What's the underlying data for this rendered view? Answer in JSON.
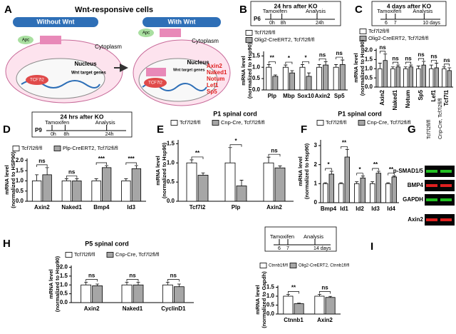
{
  "diagram": {
    "panel": "A",
    "title": "Wnt-responsive cells",
    "left_title": "Without Wnt",
    "right_title": "With Wnt",
    "left": {
      "apc": "Apc",
      "cytoplasm": "Cytoplasm",
      "nucleus": "Nucleus",
      "tf": "TCF7l2",
      "genes": "Wnt target genes"
    },
    "right": {
      "apc": "Apc",
      "cytoplasm": "Cytoplasm",
      "nucleus": "Nucleus",
      "tf": "TCF7l2",
      "genes": "Wnt target genes",
      "target_list": [
        "Axin2",
        "Naked1",
        "Notum",
        "Lef1",
        "Sp5"
      ]
    }
  },
  "blot": {
    "panel": "G",
    "columns": [
      "Tcf7l2fl/fl",
      "Cnp-Cre, Tcf7l2fl/fl"
    ],
    "rows": [
      "p-SMAD1/5",
      "BMP4",
      "GAPDH",
      "Axin2"
    ]
  },
  "chart_data": [
    {
      "type": "bar",
      "panel": "B",
      "timeline": {
        "title": "24 hrs after KO",
        "start": "P6",
        "ticks": [
          "0h",
          "8h",
          "24h"
        ],
        "events": [
          "Tamoxifen",
          "Analysis"
        ]
      },
      "ylabel": [
        "mRNA level",
        "(normalized to Hsp90)"
      ],
      "categories": [
        "Plp",
        "Mbp",
        "Sox10",
        "Axin2",
        "Sp5"
      ],
      "series": [
        {
          "name": "Tcf7l2fl/fl",
          "color": "#ffffff",
          "values": [
            1.0,
            1.0,
            1.0,
            1.0,
            1.0
          ],
          "errors": [
            0.12,
            0.1,
            0.12,
            0.12,
            0.12
          ]
        },
        {
          "name": "Olig2-CreERT2, Tcf7l2fl/fl",
          "color": "#a6a6a6",
          "values": [
            0.6,
            0.75,
            0.6,
            1.1,
            1.12
          ],
          "errors": [
            0.06,
            0.1,
            0.15,
            0.15,
            0.2
          ]
        }
      ],
      "annotations": [
        "**",
        "*",
        "*",
        "ns",
        "ns"
      ],
      "ylim": [
        0,
        1.7
      ],
      "yticks": [
        {
          "value": 0,
          "label": "0.0"
        },
        {
          "value": 0.5,
          "label": "0.5"
        },
        {
          "value": 1,
          "label": "1.0"
        },
        {
          "value": 1.5,
          "label": "1.5"
        }
      ]
    },
    {
      "type": "bar",
      "panel": "C",
      "timeline": {
        "title": "4 days after KO",
        "ticks": [
          "6",
          "7",
          "10 days"
        ],
        "events": [
          "Tamoxifen",
          "Analysis"
        ]
      },
      "ylabel": [
        "mRNA level",
        "(normalized to Hsp90)"
      ],
      "categories": [
        "Axin2",
        "Naked1",
        "Notum",
        "Sp5",
        "Lef1",
        "Tcf7l1"
      ],
      "series": [
        {
          "name": "Tcf7l2fl/fl",
          "color": "#ffffff",
          "values": [
            1.0,
            1.0,
            1.0,
            1.0,
            1.0,
            1.0
          ],
          "errors": [
            0.3,
            0.1,
            0.1,
            0.15,
            0.2,
            0.1
          ]
        },
        {
          "name": "Olig2-CreERT2, Tcf7l2fl/fl",
          "color": "#a6a6a6",
          "values": [
            1.45,
            1.1,
            1.1,
            1.2,
            1.05,
            0.9
          ],
          "errors": [
            0.35,
            0.1,
            0.1,
            0.2,
            0.25,
            0.15
          ]
        }
      ],
      "annotations": [
        "ns",
        "ns",
        "ns",
        "ns",
        "ns",
        "ns"
      ],
      "ylim": [
        0,
        2.1
      ],
      "rotate_labels": true,
      "yticks": [
        {
          "value": 0,
          "label": "0.0"
        },
        {
          "value": 0.5,
          "label": "0.5"
        },
        {
          "value": 1,
          "label": "1.0"
        },
        {
          "value": 1.5,
          "label": "1.5"
        },
        {
          "value": 2,
          "label": "2.0"
        }
      ]
    },
    {
      "type": "bar",
      "panel": "D",
      "timeline": {
        "title": "24 hrs after KO",
        "start": "P9",
        "ticks": [
          "0h",
          "8h",
          "24h"
        ],
        "events": [
          "Tamoxifen",
          "Analysis"
        ]
      },
      "ylabel": [
        "mRNA level",
        "(normalized to HSP90)"
      ],
      "categories": [
        "Axin2",
        "Naked1",
        "Bmp4",
        "Id3"
      ],
      "series": [
        {
          "name": "Tcf7l2fl/fl",
          "color": "#ffffff",
          "values": [
            1.0,
            1.0,
            1.0,
            1.0
          ],
          "errors": [
            0.3,
            0.1,
            0.1,
            0.1
          ]
        },
        {
          "name": "Plp-CreERT2, Tcf7l2fl/fl",
          "color": "#a6a6a6",
          "values": [
            1.3,
            1.0,
            1.65,
            1.6
          ],
          "errors": [
            0.35,
            0.1,
            0.1,
            0.15
          ]
        }
      ],
      "annotations": [
        "ns",
        "ns",
        "***",
        "***"
      ],
      "ylim": [
        0,
        2.1
      ],
      "yticks": [
        {
          "value": 0,
          "label": "0.0"
        },
        {
          "value": 0.5,
          "label": "0.5"
        },
        {
          "value": 1,
          "label": "1.0"
        },
        {
          "value": 1.5,
          "label": "1.5"
        },
        {
          "value": 2,
          "label": "2.0"
        }
      ]
    },
    {
      "type": "bar",
      "panel": "E",
      "title": "P1 spinal cord",
      "ylabel": [
        "mRNA level",
        "(normalized to Hsp90)"
      ],
      "categories": [
        "Tcf7l2",
        "Plp",
        "Axin2"
      ],
      "series": [
        {
          "name": "Tcf7l2fl/fl",
          "color": "#ffffff",
          "values": [
            1.0,
            1.0,
            1.0
          ],
          "errors": [
            0.08,
            0.4,
            0.15
          ]
        },
        {
          "name": "Cnp-Cre, Tcf7l2fl/fl",
          "color": "#a6a6a6",
          "values": [
            0.68,
            0.4,
            0.87
          ],
          "errors": [
            0.06,
            0.15,
            0.05
          ]
        }
      ],
      "annotations": [
        "**",
        "*",
        "ns"
      ],
      "ylim": [
        0,
        1.6
      ],
      "yticks": [
        {
          "value": 0,
          "label": "0.0"
        },
        {
          "value": 0.5,
          "label": "0.5"
        },
        {
          "value": 1,
          "label": "1.0"
        },
        {
          "value": 1.5,
          "label": "1.5"
        }
      ]
    },
    {
      "type": "bar",
      "panel": "F",
      "title": "P1 spinal cord",
      "ylabel": [
        "mRNA level",
        "(normalized to Hsp90)"
      ],
      "categories": [
        "Bmp4",
        "Id1",
        "Id2",
        "Id3",
        "Id4"
      ],
      "series": [
        {
          "name": "Tcf7l2fl/fl",
          "color": "#ffffff",
          "values": [
            1.0,
            1.0,
            1.0,
            1.0,
            1.0
          ],
          "errors": [
            0.05,
            0.05,
            0.1,
            0.1,
            0.05
          ]
        },
        {
          "name": "Cnp-Cre, Tcf7l2fl/fl",
          "color": "#a6a6a6",
          "values": [
            1.5,
            2.4,
            1.3,
            1.55,
            1.35
          ],
          "errors": [
            0.15,
            0.4,
            0.1,
            0.1,
            0.05
          ]
        }
      ],
      "annotations": [
        "*",
        "**",
        "*",
        "**",
        "**"
      ],
      "ylim": [
        0,
        3.3
      ],
      "yticks": [
        0,
        1,
        2,
        3
      ]
    },
    {
      "type": "bar",
      "panel": "H",
      "title": "P5 spinal cord",
      "ylabel": [
        "mRNA level",
        "(normalized to Hsp90)"
      ],
      "categories": [
        "Axin2",
        "Naked1",
        "CyclinD1"
      ],
      "series": [
        {
          "name": "Tcf7l2fl/fl",
          "color": "#ffffff",
          "values": [
            1.0,
            1.0,
            1.0
          ],
          "errors": [
            0.15,
            0.15,
            0.15
          ]
        },
        {
          "name": "Cnp-Cre, Tcf7l2fl/fl",
          "color": "#a6a6a6",
          "values": [
            0.95,
            1.0,
            0.9
          ],
          "errors": [
            0.1,
            0.15,
            0.15
          ]
        }
      ],
      "annotations": [
        "ns",
        "ns",
        "ns"
      ],
      "ylim": [
        0,
        2.1
      ],
      "yticks": [
        {
          "value": 0,
          "label": "0.0"
        },
        {
          "value": 0.5,
          "label": "0.5"
        },
        {
          "value": 1,
          "label": "1.0"
        },
        {
          "value": 1.5,
          "label": "1.5"
        },
        {
          "value": 2,
          "label": "2.0"
        }
      ]
    },
    {
      "type": "bar",
      "panel": "I",
      "timeline": {
        "ticks": [
          "6",
          "7",
          "14 days"
        ],
        "events": [
          "Tamoxifen",
          "Analysis"
        ]
      },
      "ylabel": [
        "mRNA level",
        "(normalized to Gapdh)"
      ],
      "categories": [
        "Ctnnb1",
        "Axin2"
      ],
      "series": [
        {
          "name": "Ctnnb1fl/fl",
          "color": "#ffffff",
          "values": [
            1.0,
            1.0
          ],
          "errors": [
            0.1,
            0.1
          ]
        },
        {
          "name": "Olig2-CreERT2, Ctnnb1fl/fl",
          "color": "#a6a6a6",
          "values": [
            0.58,
            0.93
          ],
          "errors": [
            0.03,
            0.06
          ]
        }
      ],
      "annotations": [
        "**",
        "ns"
      ],
      "ylim": [
        0,
        1.6
      ],
      "yticks": [
        {
          "value": 0,
          "label": "0.0"
        },
        {
          "value": 0.5,
          "label": "0.5"
        },
        {
          "value": 1,
          "label": "1.0"
        },
        {
          "value": 1.5,
          "label": "1.5"
        }
      ]
    }
  ]
}
